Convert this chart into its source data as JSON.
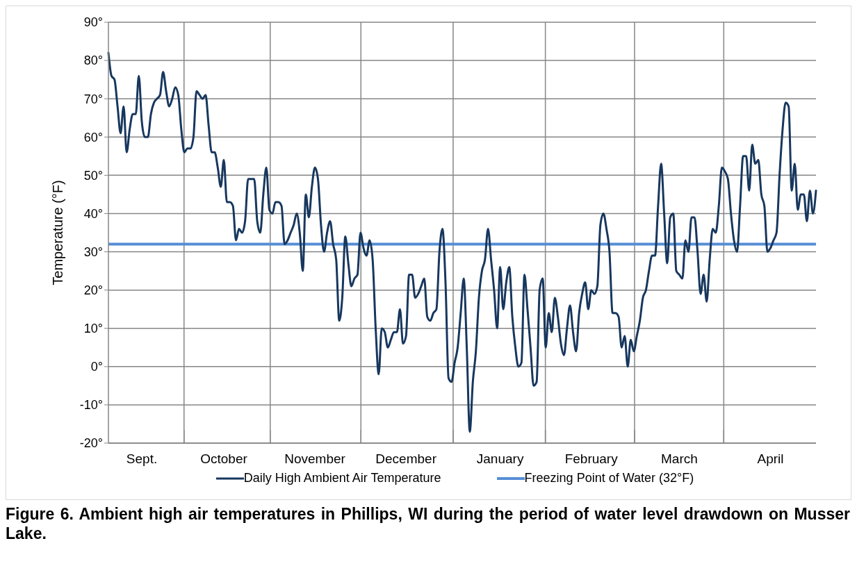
{
  "chart_data": {
    "type": "line",
    "title": "Figure 6.  Ambient high air temperatures in Phillips, WI during the period of water level drawdown on Musser Lake.",
    "ylabel": "Temperature (°F)",
    "categories": [
      null,
      null,
      null,
      null,
      null,
      null,
      null,
      null,
      null,
      null,
      null,
      "Sept.",
      null,
      null,
      null,
      null,
      null,
      null,
      null,
      null,
      null,
      null,
      null,
      null,
      null,
      null,
      null,
      null,
      null,
      null,
      null,
      null,
      null,
      null,
      null,
      null,
      null,
      null,
      "October",
      null,
      null,
      null,
      null,
      null,
      null,
      null,
      null,
      null,
      null,
      null,
      null,
      null,
      null,
      null,
      null,
      null,
      null,
      null,
      null,
      null,
      null,
      null,
      null,
      null,
      null,
      null,
      null,
      null,
      "November",
      null,
      null,
      null,
      null,
      null,
      null,
      null,
      null,
      null,
      null,
      null,
      null,
      null,
      null,
      null,
      null,
      null,
      null,
      null,
      null,
      null,
      null,
      null,
      null,
      null,
      null,
      null,
      null,
      null,
      "December",
      null,
      null,
      null,
      null,
      null,
      null,
      null,
      null,
      null,
      null,
      null,
      null,
      null,
      null,
      null,
      null,
      null,
      null,
      null,
      null,
      null,
      null,
      null,
      null,
      null,
      null,
      null,
      null,
      null,
      null,
      "January",
      null,
      null,
      null,
      null,
      null,
      null,
      null,
      null,
      null,
      null,
      null,
      null,
      null,
      null,
      null,
      null,
      null,
      null,
      null,
      null,
      null,
      null,
      null,
      null,
      null,
      null,
      null,
      null,
      null,
      "February",
      null,
      null,
      null,
      null,
      null,
      null,
      null,
      null,
      null,
      null,
      null,
      null,
      null,
      null,
      null,
      null,
      null,
      null,
      null,
      null,
      null,
      null,
      null,
      null,
      null,
      null,
      null,
      null,
      "March",
      null,
      null,
      null,
      null,
      null,
      null,
      null,
      null,
      null,
      null,
      null,
      null,
      null,
      null,
      null,
      null,
      null,
      null,
      null,
      null,
      null,
      null,
      null,
      null,
      null,
      null,
      null,
      null,
      null,
      "April",
      null,
      null,
      null,
      null,
      null,
      null,
      null,
      null,
      null,
      null,
      null,
      null,
      null,
      null,
      null
    ],
    "series": [
      {
        "name": "Daily High Ambient Air Temperature",
        "color": "#17375e",
        "values": [
          82,
          76,
          75,
          68,
          61,
          68,
          56,
          62,
          66,
          66,
          76,
          64,
          60,
          60,
          66,
          69,
          70,
          71,
          77,
          72,
          68,
          70,
          73,
          71,
          62,
          56,
          57,
          57,
          60,
          72,
          71,
          70,
          71,
          63,
          56,
          56,
          52,
          47,
          54,
          43,
          43,
          42,
          33,
          36,
          35,
          38,
          49,
          49,
          49,
          38,
          35,
          45,
          52,
          41,
          40,
          43,
          43,
          42,
          32,
          33,
          35,
          37,
          40,
          35,
          25,
          45,
          39,
          47,
          52,
          49,
          37,
          30,
          35,
          38,
          32,
          28,
          12,
          18,
          34,
          27,
          21,
          23,
          24,
          35,
          31,
          29,
          33,
          28,
          10,
          -2,
          10,
          9,
          5,
          7,
          9,
          9,
          15,
          6,
          8,
          24,
          24,
          18,
          19,
          21,
          23,
          13,
          12,
          14,
          15,
          30,
          36,
          22,
          -3,
          -4,
          1,
          5,
          14,
          23,
          5,
          -17,
          -4,
          4,
          18,
          25,
          28,
          36,
          28,
          20,
          10,
          26,
          15,
          22,
          26,
          13,
          5,
          0,
          1,
          24,
          15,
          5,
          -5,
          -4,
          20,
          23,
          5,
          14,
          9,
          18,
          13,
          6,
          3,
          10,
          16,
          9,
          4,
          14,
          19,
          22,
          15,
          20,
          19,
          21,
          37,
          40,
          36,
          30,
          14,
          14,
          13,
          5,
          8,
          0,
          7,
          4,
          8,
          12,
          18,
          20,
          25,
          29,
          29,
          42,
          53,
          40,
          27,
          39,
          40,
          25,
          24,
          23,
          33,
          30,
          39,
          39,
          30,
          19,
          24,
          17,
          28,
          36,
          35,
          42,
          52,
          51,
          49,
          40,
          33,
          30,
          42,
          55,
          55,
          46,
          58,
          53,
          54,
          45,
          42,
          30,
          31,
          33,
          35,
          50,
          62,
          69,
          68,
          46,
          53,
          41,
          45,
          45,
          38,
          46,
          40,
          46
        ]
      }
    ],
    "ylim": [
      -20,
      90
    ],
    "yticks": [
      {
        "value": -20,
        "label": "-20°"
      },
      {
        "value": -10,
        "label": "-10°"
      },
      {
        "value": 0,
        "label": "0°"
      },
      {
        "value": 10,
        "label": "10°"
      },
      {
        "value": 20,
        "label": "20°"
      },
      {
        "value": 30,
        "label": "30°"
      },
      {
        "value": 40,
        "label": "40°"
      },
      {
        "value": 50,
        "label": "50°"
      },
      {
        "value": 60,
        "label": "60°"
      },
      {
        "value": 70,
        "label": "70°"
      },
      {
        "value": 80,
        "label": "80°"
      },
      {
        "value": 90,
        "label": "90°"
      }
    ],
    "ref_lines": [
      {
        "axis": "y",
        "value": 32,
        "label": "Freezing Point of Water (32°F)",
        "color": "#558ed5"
      }
    ],
    "grid": true,
    "legend": "bottom",
    "marker": "none",
    "line_style": "solid"
  }
}
